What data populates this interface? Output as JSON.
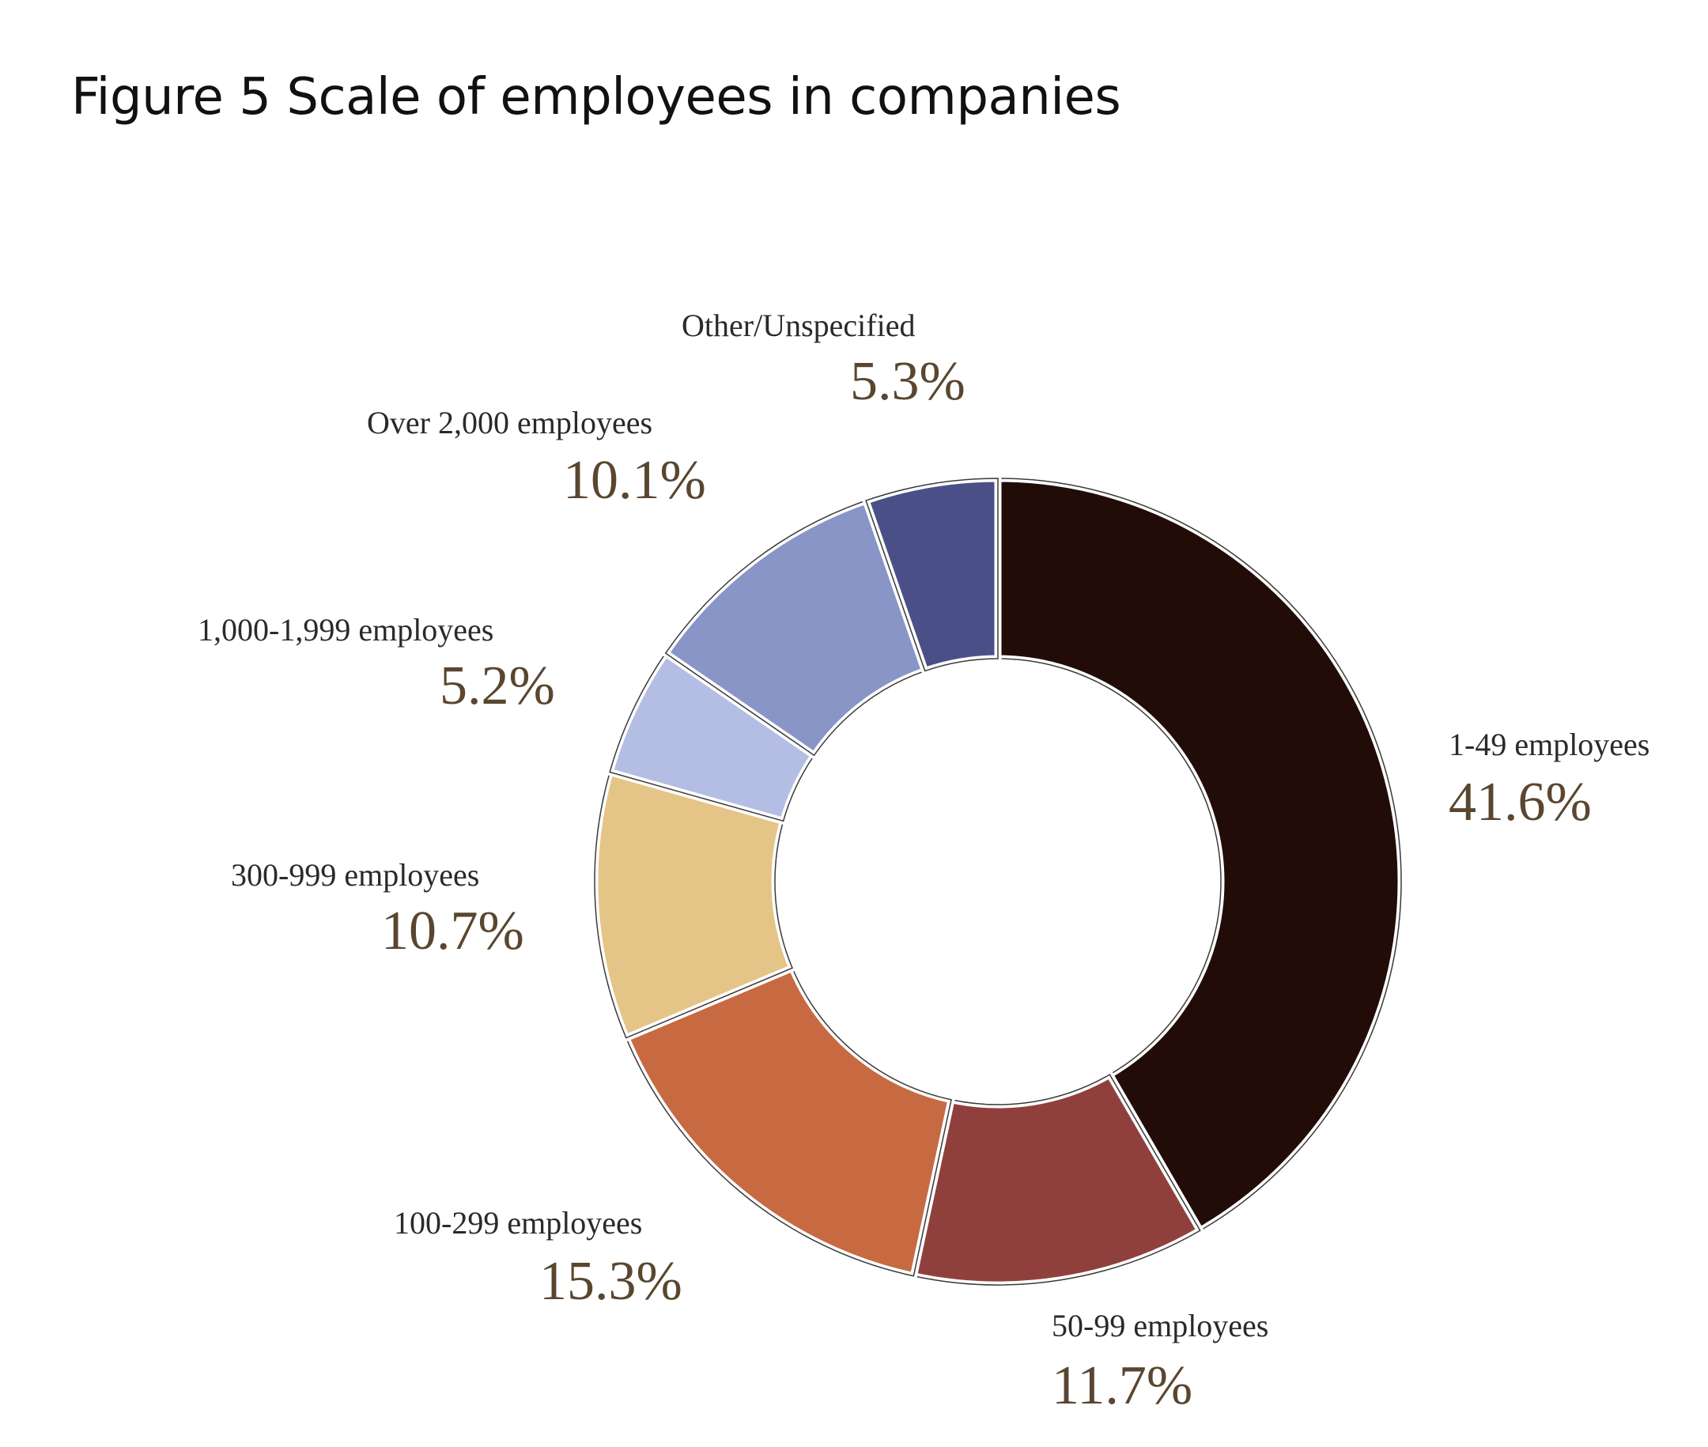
{
  "title": "Figure 5 Scale of employees in companies",
  "chart_data": {
    "type": "pie",
    "variant": "donut",
    "title": "Figure 5 Scale of employees in companies",
    "order": "clockwise from top",
    "slices": [
      {
        "label": "1-49 employees",
        "value": 41.6,
        "display": "41.6%",
        "color": "#210c07"
      },
      {
        "label": "50-99 employees",
        "value": 11.7,
        "display": "11.7%",
        "color": "#90403c"
      },
      {
        "label": "100-299 employees",
        "value": 15.3,
        "display": "15.3%",
        "color": "#c76a42"
      },
      {
        "label": "300-999 employees",
        "value": 10.7,
        "display": "10.7%",
        "color": "#e5c587"
      },
      {
        "label": "1,000-1,999 employees",
        "value": 5.2,
        "display": "5.2%",
        "color": "#b4bde3"
      },
      {
        "label": "Over 2,000 employees",
        "value": 10.1,
        "display": "10.1%",
        "color": "#8895c6"
      },
      {
        "label": "Other/Unspecified",
        "value": 5.3,
        "display": "5.3%",
        "color": "#4a5087"
      }
    ]
  }
}
